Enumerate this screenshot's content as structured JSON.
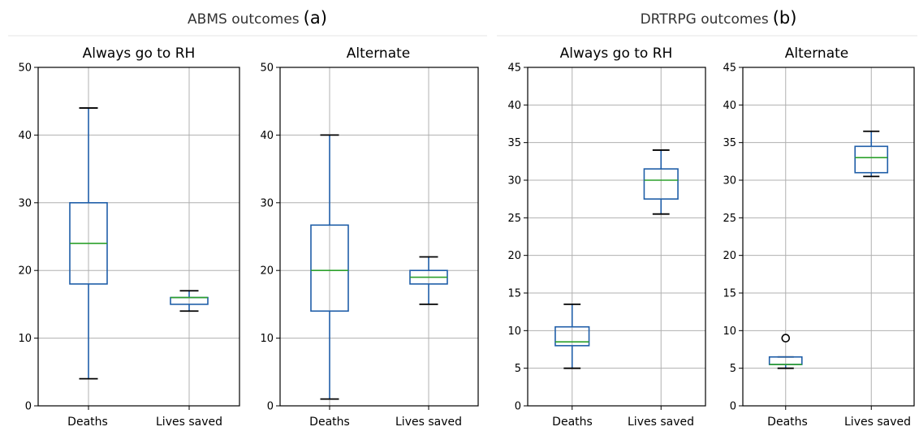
{
  "groups": [
    {
      "title": "ABMS outcomes",
      "letter": "(a)",
      "subplots": [
        {
          "title": "Always go to RH",
          "ylim": [
            0,
            50
          ],
          "yticks": [
            0,
            10,
            20,
            30,
            40,
            50
          ],
          "categories": [
            "Deaths",
            "Lives saved"
          ],
          "boxes": [
            {
              "category": "Deaths",
              "whisker_low": 4,
              "q1": 18,
              "median": 24,
              "q3": 30,
              "whisker_high": 44,
              "outliers": []
            },
            {
              "category": "Lives saved",
              "whisker_low": 14,
              "q1": 15,
              "median": 16,
              "q3": 16,
              "whisker_high": 17,
              "outliers": []
            }
          ]
        },
        {
          "title": "Alternate",
          "ylim": [
            0,
            50
          ],
          "yticks": [
            0,
            10,
            20,
            30,
            40,
            50
          ],
          "categories": [
            "Deaths",
            "Lives saved"
          ],
          "boxes": [
            {
              "category": "Deaths",
              "whisker_low": 1,
              "q1": 14,
              "median": 20,
              "q3": 26.7,
              "whisker_high": 40,
              "outliers": []
            },
            {
              "category": "Lives saved",
              "whisker_low": 15,
              "q1": 18,
              "median": 19,
              "q3": 20,
              "whisker_high": 22,
              "outliers": []
            }
          ]
        }
      ]
    },
    {
      "title": "DRTRPG outcomes",
      "letter": "(b)",
      "subplots": [
        {
          "title": "Always go to RH",
          "ylim": [
            0,
            45
          ],
          "yticks": [
            0,
            5,
            10,
            15,
            20,
            25,
            30,
            35,
            40,
            45
          ],
          "categories": [
            "Deaths",
            "Lives saved"
          ],
          "boxes": [
            {
              "category": "Deaths",
              "whisker_low": 5,
              "q1": 8,
              "median": 8.5,
              "q3": 10.5,
              "whisker_high": 13.5,
              "outliers": []
            },
            {
              "category": "Lives saved",
              "whisker_low": 25.5,
              "q1": 27.5,
              "median": 30,
              "q3": 31.5,
              "whisker_high": 34,
              "outliers": []
            }
          ]
        },
        {
          "title": "Alternate",
          "ylim": [
            0,
            45
          ],
          "yticks": [
            0,
            5,
            10,
            15,
            20,
            25,
            30,
            35,
            40,
            45
          ],
          "categories": [
            "Deaths",
            "Lives saved"
          ],
          "boxes": [
            {
              "category": "Deaths",
              "whisker_low": 5,
              "q1": 5.5,
              "median": 5.5,
              "q3": 6.5,
              "whisker_high": 6.5,
              "outliers": [
                9
              ]
            },
            {
              "category": "Lives saved",
              "whisker_low": 30.5,
              "q1": 31,
              "median": 33,
              "q3": 34.5,
              "whisker_high": 36.5,
              "outliers": []
            }
          ]
        }
      ]
    }
  ],
  "chart_data": [
    {
      "type": "box",
      "group": "ABMS outcomes (a)",
      "title": "Always go to RH",
      "categories": [
        "Deaths",
        "Lives saved"
      ],
      "ylim": [
        0,
        50
      ],
      "grid": true,
      "series": [
        {
          "name": "Deaths",
          "min": 4,
          "q1": 18,
          "median": 24,
          "q3": 30,
          "max": 44,
          "outliers": []
        },
        {
          "name": "Lives saved",
          "min": 14,
          "q1": 15,
          "median": 16,
          "q3": 16,
          "max": 17,
          "outliers": []
        }
      ]
    },
    {
      "type": "box",
      "group": "ABMS outcomes (a)",
      "title": "Alternate",
      "categories": [
        "Deaths",
        "Lives saved"
      ],
      "ylim": [
        0,
        50
      ],
      "grid": true,
      "series": [
        {
          "name": "Deaths",
          "min": 1,
          "q1": 14,
          "median": 20,
          "q3": 26.7,
          "max": 40,
          "outliers": []
        },
        {
          "name": "Lives saved",
          "min": 15,
          "q1": 18,
          "median": 19,
          "q3": 20,
          "max": 22,
          "outliers": []
        }
      ]
    },
    {
      "type": "box",
      "group": "DRTRPG outcomes (b)",
      "title": "Always go to RH",
      "categories": [
        "Deaths",
        "Lives saved"
      ],
      "ylim": [
        0,
        45
      ],
      "grid": true,
      "series": [
        {
          "name": "Deaths",
          "min": 5,
          "q1": 8,
          "median": 8.5,
          "q3": 10.5,
          "max": 13.5,
          "outliers": []
        },
        {
          "name": "Lives saved",
          "min": 25.5,
          "q1": 27.5,
          "median": 30,
          "q3": 31.5,
          "max": 34,
          "outliers": []
        }
      ]
    },
    {
      "type": "box",
      "group": "DRTRPG outcomes (b)",
      "title": "Alternate",
      "categories": [
        "Deaths",
        "Lives saved"
      ],
      "ylim": [
        0,
        45
      ],
      "grid": true,
      "series": [
        {
          "name": "Deaths",
          "min": 5,
          "q1": 5.5,
          "median": 5.5,
          "q3": 6.5,
          "max": 6.5,
          "outliers": [
            9
          ]
        },
        {
          "name": "Lives saved",
          "min": 30.5,
          "q1": 31,
          "median": 33,
          "q3": 34.5,
          "max": 36.5,
          "outliers": []
        }
      ]
    }
  ]
}
